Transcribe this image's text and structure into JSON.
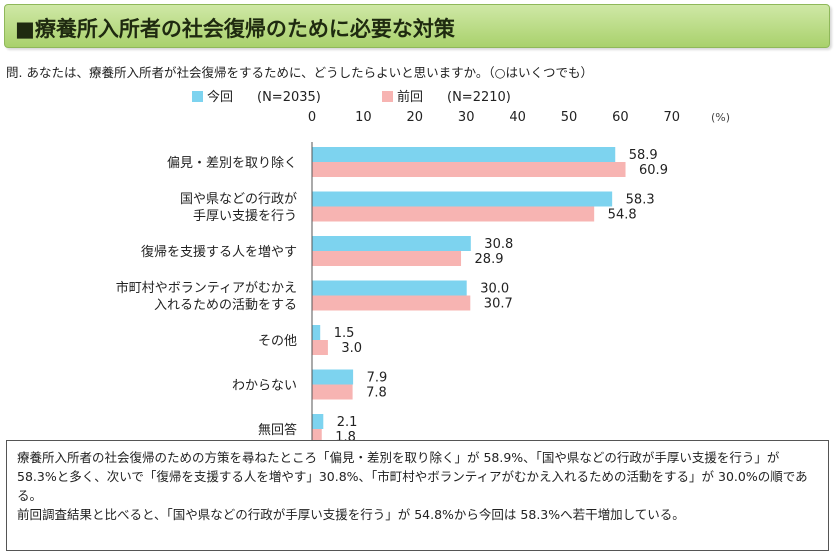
{
  "title": "■療養所入所者の社会復帰のために必要な対策",
  "question": "問. あなたは、療養所入所者が社会復帰をするために、どうしたらよいと思いますか。（○はいくつでも）",
  "colors": {
    "current": "#7dd3ef",
    "previous": "#f7b4b2"
  },
  "chart_data": {
    "type": "bar",
    "orientation": "horizontal",
    "x_ticks": [
      "0",
      "10",
      "20",
      "30",
      "40",
      "50",
      "60",
      "70"
    ],
    "x_unit": "(%)",
    "xlim": [
      0,
      70
    ],
    "categories": [
      [
        "偏見・差別を取り除く"
      ],
      [
        "国や県などの行政が",
        "手厚い支援を行う"
      ],
      [
        "復帰を支援する人を増やす"
      ],
      [
        "市町村やボランティアがむかえ",
        "入れるための活動をする"
      ],
      [
        "その他"
      ],
      [
        "わからない"
      ],
      [
        "無回答"
      ]
    ],
    "series": [
      {
        "name": "今回",
        "n": "(N=2035)",
        "values": [
          58.9,
          58.3,
          30.8,
          30.0,
          1.5,
          7.9,
          2.1
        ]
      },
      {
        "name": "前回",
        "n": "(N=2210)",
        "values": [
          60.9,
          54.8,
          28.9,
          30.7,
          3.0,
          7.8,
          1.8
        ]
      }
    ],
    "value_labels": [
      [
        "58.9",
        "58.3",
        "30.8",
        "30.0",
        "1.5",
        "7.9",
        "2.1"
      ],
      [
        "60.9",
        "54.8",
        "28.9",
        "30.7",
        "3.0",
        "7.8",
        "1.8"
      ]
    ]
  },
  "summary": [
    "療養所入所者の社会復帰のための方策を尋ねたところ「偏見・差別を取り除く」が 58.9%、「国や県などの行政が手厚い支援を行う」が 58.3%と多く、次いで「復帰を支援する人を増やす」30.8%、「市町村やボランティアがむかえ入れるための活動をする」が 30.0%の順である。",
    "前回調査結果と比べると、「国や県などの行政が手厚い支援を行う」が 54.8%から今回は 58.3%へ若干増加している。"
  ]
}
